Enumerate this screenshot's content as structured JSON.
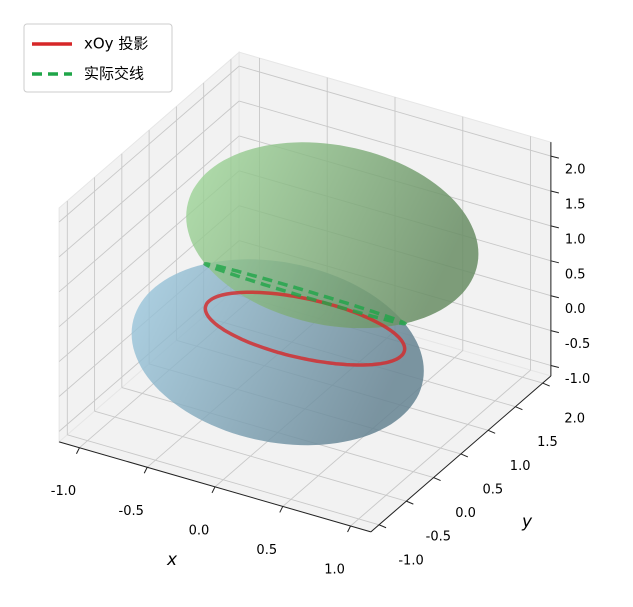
{
  "chart_data": {
    "type": "surface3d",
    "xlabel": "x",
    "ylabel": "y",
    "xlim": [
      -1.15,
      1.15
    ],
    "ylim": [
      -1.15,
      2.15
    ],
    "zlim": [
      -1.15,
      2.2
    ],
    "xticks": [
      {
        "value": -1,
        "label": "-1.0"
      },
      -0.5,
      {
        "value": 0,
        "label": "0.0"
      },
      0.5,
      {
        "value": 1,
        "label": "1.0"
      }
    ],
    "yticks": [
      {
        "value": -1,
        "label": "-1.0"
      },
      -0.5,
      {
        "value": 0,
        "label": "0.0"
      },
      0.5,
      {
        "value": 1,
        "label": "1.0"
      },
      1.5,
      {
        "value": 2,
        "label": "2.0"
      }
    ],
    "zticks": [
      {
        "value": -1,
        "label": "-1.0"
      },
      -0.5,
      {
        "value": 0,
        "label": "0.0"
      },
      0.5,
      {
        "value": 1,
        "label": "1.0"
      },
      1.5,
      {
        "value": 2,
        "label": "2.0"
      }
    ],
    "grid": true,
    "legend": "upper left",
    "surfaces": [
      {
        "center": [
          0,
          0,
          0
        ],
        "radius": 1,
        "color": "#9ecae1"
      },
      {
        "center": [
          0,
          1,
          1
        ],
        "radius": 1,
        "color": "#a1d99b"
      }
    ],
    "series": [
      {
        "name": "xOy 投影",
        "color": "#d62728",
        "style": "solid"
      },
      {
        "name": "实际交线",
        "color": "#1fa548",
        "style": "dashed"
      }
    ]
  }
}
